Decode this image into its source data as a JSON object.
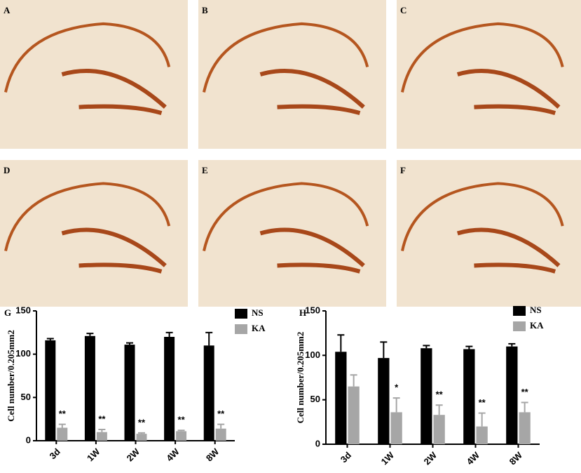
{
  "panels": [
    "A",
    "B",
    "C",
    "D",
    "E",
    "F"
  ],
  "chart_data": [
    {
      "type": "bar",
      "panel": "G",
      "y_label": "Cell number/0.205mm2",
      "categories": [
        "3d",
        "1W",
        "2W",
        "4W",
        "8W"
      ],
      "series": [
        {
          "name": "NS",
          "color": "#000000",
          "values": [
            116,
            121,
            111,
            120,
            110
          ],
          "errors": [
            2,
            3,
            2,
            5,
            15
          ]
        },
        {
          "name": "KA",
          "color": "#a6a6a6",
          "values": [
            15,
            10,
            8,
            11,
            14
          ],
          "errors": [
            4,
            3,
            1,
            1,
            5
          ]
        }
      ],
      "significance": [
        "**",
        "**",
        "**",
        "**",
        "**"
      ],
      "ylim": [
        0,
        150
      ],
      "yticks": [
        0,
        50,
        100,
        150
      ]
    },
    {
      "type": "bar",
      "panel": "H",
      "y_label": "Cell number/0.205mm2",
      "categories": [
        "3d",
        "1W",
        "2W",
        "4W",
        "8W"
      ],
      "series": [
        {
          "name": "NS",
          "color": "#000000",
          "values": [
            104,
            97,
            108,
            107,
            110
          ],
          "errors": [
            19,
            18,
            3,
            3,
            3
          ]
        },
        {
          "name": "KA",
          "color": "#a6a6a6",
          "values": [
            65,
            36,
            33,
            20,
            36
          ],
          "errors": [
            13,
            16,
            11,
            15,
            11
          ]
        }
      ],
      "significance": [
        null,
        "*",
        "**",
        "**",
        "**"
      ],
      "ylim": [
        0,
        150
      ],
      "yticks": [
        0,
        50,
        100,
        150
      ]
    }
  ]
}
